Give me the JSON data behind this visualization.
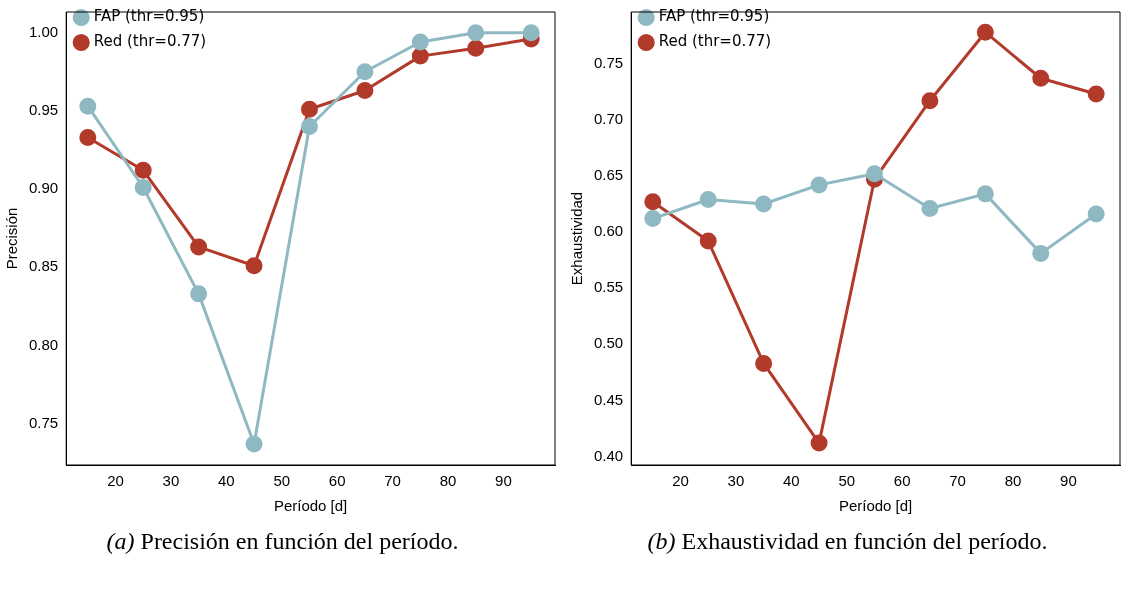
{
  "chart_data": [
    {
      "type": "line",
      "xlabel": "Período [d]",
      "ylabel": "Precisión",
      "annotations": [
        "(a) Precisión en función del período."
      ],
      "x": [
        15,
        25,
        35,
        45,
        55,
        65,
        75,
        85,
        95
      ],
      "xlim": [
        11.1,
        99.3
      ],
      "xticks": [
        20,
        30,
        40,
        50,
        60,
        70,
        80,
        90
      ],
      "ylim": [
        0.7236,
        1.0132
      ],
      "yticks": [
        {
          "value": 0.75,
          "label": "0.75"
        },
        {
          "value": 0.8,
          "label": "0.80"
        },
        {
          "value": 0.85,
          "label": "0.85"
        },
        {
          "value": 0.9,
          "label": "0.90"
        },
        {
          "value": 0.95,
          "label": "0.95"
        },
        {
          "value": 1.0,
          "label": "1.00"
        }
      ],
      "grid": false,
      "legend": "top left",
      "marker": "circle",
      "line_style": "solid",
      "series": [
        {
          "name": "Red (thr=0.77)",
          "color": "#b23a2b",
          "values": [
            0.933,
            0.912,
            0.863,
            0.851,
            0.951,
            0.963,
            0.985,
            0.99,
            0.996
          ]
        },
        {
          "name": "FAP (thr=0.95)",
          "color": "#8fb9c2",
          "values": [
            0.953,
            0.901,
            0.833,
            0.737,
            0.94,
            0.975,
            0.994,
            1.0,
            1.0
          ]
        }
      ]
    },
    {
      "type": "line",
      "xlabel": "Período [d]",
      "ylabel": "Exhaustividad",
      "annotations": [
        "(b) Exhaustividad en función del período."
      ],
      "x": [
        15,
        25,
        35,
        45,
        55,
        65,
        75,
        85,
        95
      ],
      "xlim": [
        11.1,
        99.3
      ],
      "xticks": [
        20,
        30,
        40,
        50,
        60,
        70,
        80,
        90
      ],
      "ylim": [
        0.3925,
        0.796
      ],
      "yticks": [
        {
          "value": 0.4,
          "label": "0.40"
        },
        {
          "value": 0.45,
          "label": "0.45"
        },
        {
          "value": 0.5,
          "label": "0.50"
        },
        {
          "value": 0.55,
          "label": "0.55"
        },
        {
          "value": 0.6,
          "label": "0.60"
        },
        {
          "value": 0.65,
          "label": "0.65"
        },
        {
          "value": 0.7,
          "label": "0.70"
        },
        {
          "value": 0.75,
          "label": "0.75"
        }
      ],
      "grid": false,
      "legend": "top left",
      "marker": "circle",
      "line_style": "solid",
      "series": [
        {
          "name": "Red (thr=0.77)",
          "color": "#b23a2b",
          "values": [
            0.627,
            0.592,
            0.483,
            0.412,
            0.647,
            0.717,
            0.778,
            0.737,
            0.723
          ]
        },
        {
          "name": "FAP (thr=0.95)",
          "color": "#8fb9c2",
          "values": [
            0.612,
            0.629,
            0.625,
            0.642,
            0.652,
            0.621,
            0.634,
            0.581,
            0.616
          ]
        }
      ]
    }
  ]
}
